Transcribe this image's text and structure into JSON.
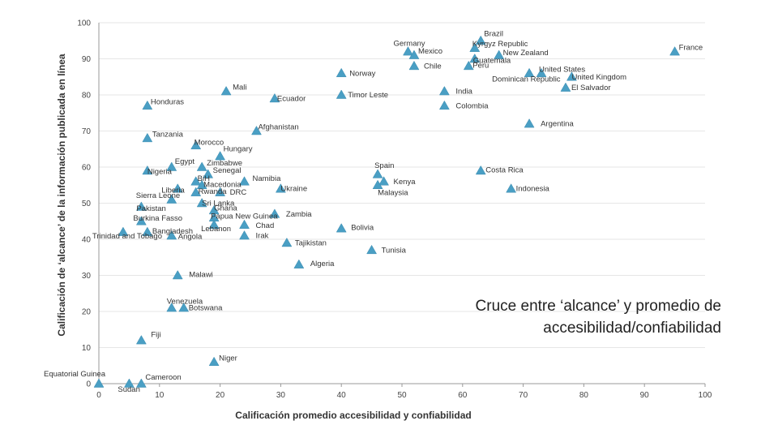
{
  "caption": {
    "line1": "Cruce entre ‘alcance’ y promedio de",
    "line2": "accesibilidad/confiabilidad"
  },
  "chart_data": {
    "type": "scatter",
    "xlabel": "Calificación promedio accesibilidad y confiabilidad",
    "ylabel": "Calificación de ‘alcance’ de la información publicada en línea",
    "xlim": [
      0,
      100
    ],
    "ylim": [
      0,
      100
    ],
    "xticks": [
      0,
      10,
      20,
      30,
      40,
      50,
      60,
      70,
      80,
      90,
      100
    ],
    "yticks": [
      0,
      10,
      20,
      30,
      40,
      50,
      60,
      70,
      80,
      90,
      100
    ],
    "grid": "horizontal",
    "marker": "triangle",
    "marker_color": "#4a9fc4",
    "points": [
      {
        "label": "Brazil",
        "x": 63,
        "y": 95
      },
      {
        "label": "Kyrgyz Republic",
        "x": 62,
        "y": 93
      },
      {
        "label": "Germany",
        "x": 51,
        "y": 92
      },
      {
        "label": "Mexico",
        "x": 52,
        "y": 91
      },
      {
        "label": "New Zealand",
        "x": 66,
        "y": 91
      },
      {
        "label": "Guatemala",
        "x": 62,
        "y": 90
      },
      {
        "label": "Chile",
        "x": 52,
        "y": 88
      },
      {
        "label": "Peru",
        "x": 61,
        "y": 88
      },
      {
        "label": "France",
        "x": 95,
        "y": 92
      },
      {
        "label": "United States",
        "x": 73,
        "y": 86
      },
      {
        "label": "Dominican Republic",
        "x": 71,
        "y": 86
      },
      {
        "label": "United Kingdom",
        "x": 78,
        "y": 85
      },
      {
        "label": "El Salvador",
        "x": 77,
        "y": 82
      },
      {
        "label": "Norway",
        "x": 40,
        "y": 86
      },
      {
        "label": "India",
        "x": 57,
        "y": 81
      },
      {
        "label": "Timor Leste",
        "x": 40,
        "y": 80
      },
      {
        "label": "Colombia",
        "x": 57,
        "y": 77
      },
      {
        "label": "Mali",
        "x": 21,
        "y": 81
      },
      {
        "label": "Ecuador",
        "x": 29,
        "y": 79
      },
      {
        "label": "Honduras",
        "x": 8,
        "y": 77
      },
      {
        "label": "Argentina",
        "x": 71,
        "y": 72
      },
      {
        "label": "Afghanistan",
        "x": 26,
        "y": 70
      },
      {
        "label": "Tanzania",
        "x": 8,
        "y": 68
      },
      {
        "label": "Morocco",
        "x": 16,
        "y": 66
      },
      {
        "label": "Hungary",
        "x": 20,
        "y": 63
      },
      {
        "label": "Egypt",
        "x": 12,
        "y": 60
      },
      {
        "label": "Zimbabwe",
        "x": 17,
        "y": 60
      },
      {
        "label": "Senegal",
        "x": 18,
        "y": 58
      },
      {
        "label": "Nigeria",
        "x": 8,
        "y": 59
      },
      {
        "label": "Spain",
        "x": 46,
        "y": 58
      },
      {
        "label": "Costa Rica",
        "x": 63,
        "y": 59
      },
      {
        "label": "BiH",
        "x": 16,
        "y": 56
      },
      {
        "label": "Namibia",
        "x": 24,
        "y": 56
      },
      {
        "label": "Kenya",
        "x": 47,
        "y": 56
      },
      {
        "label": "Macedonia",
        "x": 17,
        "y": 55
      },
      {
        "label": "Liberia",
        "x": 13,
        "y": 54
      },
      {
        "label": "DRC",
        "x": 20,
        "y": 53
      },
      {
        "label": "Ukraine",
        "x": 30,
        "y": 54
      },
      {
        "label": "Malaysia",
        "x": 46,
        "y": 55
      },
      {
        "label": "Indonesia",
        "x": 68,
        "y": 54
      },
      {
        "label": "Rwanda",
        "x": 16,
        "y": 53
      },
      {
        "label": "Sierra Leone",
        "x": 12,
        "y": 51
      },
      {
        "label": "Sri Lanka",
        "x": 17,
        "y": 50
      },
      {
        "label": "Pakistan",
        "x": 7,
        "y": 49
      },
      {
        "label": "Ghana",
        "x": 19,
        "y": 48
      },
      {
        "label": "Zambia",
        "x": 29,
        "y": 47
      },
      {
        "label": "Papua New Guinea",
        "x": 19,
        "y": 46
      },
      {
        "label": "Burkina Fasso",
        "x": 7,
        "y": 45
      },
      {
        "label": "Chad",
        "x": 24,
        "y": 44
      },
      {
        "label": "Lebanon",
        "x": 19,
        "y": 44
      },
      {
        "label": "Bangladesh",
        "x": 8,
        "y": 42
      },
      {
        "label": "Bolivia",
        "x": 40,
        "y": 43
      },
      {
        "label": "Trinidad and Tobago",
        "x": 4,
        "y": 42
      },
      {
        "label": "Angola",
        "x": 12,
        "y": 41
      },
      {
        "label": "Irak",
        "x": 24,
        "y": 41
      },
      {
        "label": "Tajikistan",
        "x": 31,
        "y": 39
      },
      {
        "label": "Tunisia",
        "x": 45,
        "y": 37
      },
      {
        "label": "Algeria",
        "x": 33,
        "y": 33
      },
      {
        "label": "Malawi",
        "x": 13,
        "y": 30
      },
      {
        "label": "Venezuela",
        "x": 12,
        "y": 21
      },
      {
        "label": "Botswana",
        "x": 14,
        "y": 21
      },
      {
        "label": "Fiji",
        "x": 7,
        "y": 12
      },
      {
        "label": "Niger",
        "x": 19,
        "y": 6
      },
      {
        "label": "Equatorial Guinea",
        "x": 0,
        "y": 0
      },
      {
        "label": "Sudan",
        "x": 5,
        "y": 0
      },
      {
        "label": "Cameroon",
        "x": 7,
        "y": 0
      }
    ]
  }
}
